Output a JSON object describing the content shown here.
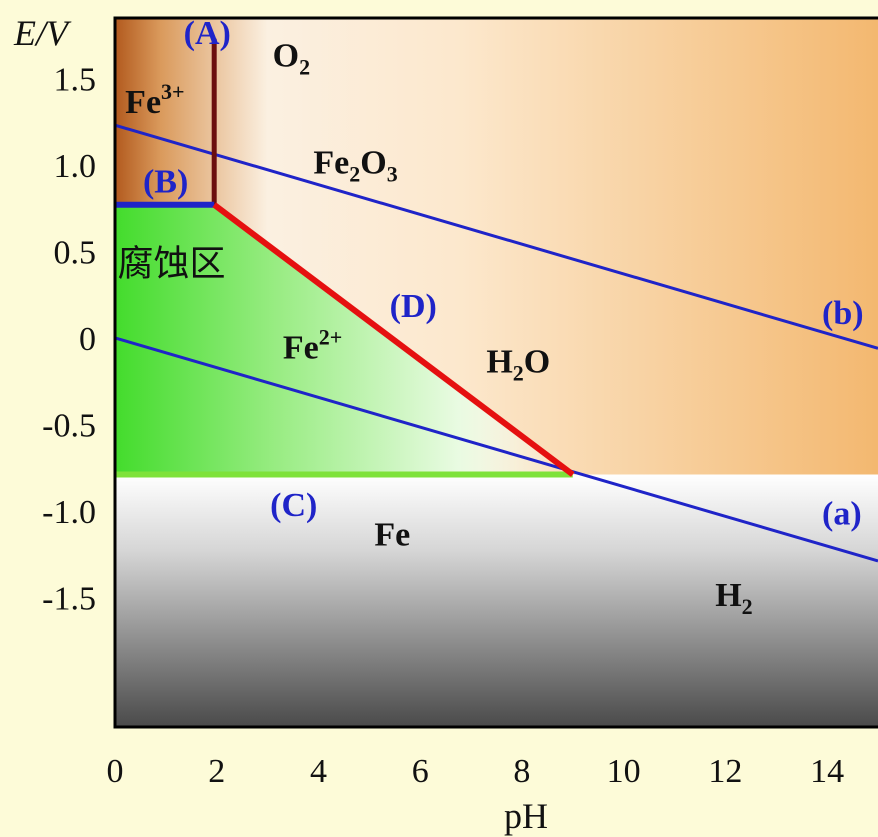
{
  "chart_data": {
    "type": "line",
    "title": "",
    "xlabel": "pH",
    "ylabel": "E/V",
    "xlim": [
      0,
      15
    ],
    "ylim": [
      -2.25,
      1.85
    ],
    "x_ticks": [
      0,
      2,
      4,
      6,
      8,
      10,
      12,
      14
    ],
    "y_ticks": [
      1.5,
      1.0,
      0.5,
      0,
      -0.5,
      -1.0,
      -1.5
    ],
    "y_tick_labels": [
      "1.5",
      "1.0",
      "0.5",
      "0",
      "-0.5",
      "-1.0",
      "-1.5"
    ],
    "regions": [
      {
        "label": "Fe3+",
        "color": "#B25A1E"
      },
      {
        "label": "Fe2O3",
        "color": "#F3B870"
      },
      {
        "label": "Fe2+",
        "color": "#43DC2C"
      },
      {
        "label": "Fe",
        "color": "#5A5A5A"
      }
    ],
    "series": [
      {
        "name": "(A)",
        "color": "#6B0F0F",
        "x": [
          1.95,
          1.95
        ],
        "y": [
          0.77,
          1.73
        ]
      },
      {
        "name": "(B)",
        "color": "#1F24C8",
        "x": [
          0,
          1.95
        ],
        "y": [
          0.77,
          0.77
        ]
      },
      {
        "name": "(C)",
        "color": "#7EE23A",
        "x": [
          0,
          9.0
        ],
        "y": [
          -0.79,
          -0.79
        ]
      },
      {
        "name": "(D)",
        "color": "#E51010",
        "x": [
          1.95,
          9.0
        ],
        "y": [
          0.77,
          -0.79
        ]
      },
      {
        "name": "(a)",
        "color": "#1F24C8",
        "x": [
          0,
          15
        ],
        "y": [
          0.0,
          -1.29
        ]
      },
      {
        "name": "(b)",
        "color": "#1F24C8",
        "x": [
          0,
          15
        ],
        "y": [
          1.23,
          -0.06
        ]
      }
    ],
    "annotations": [
      {
        "text": "Fe",
        "sup": "3+",
        "x": 0.2,
        "y": 1.3
      },
      {
        "text": "O",
        "sub": "2",
        "x": 3.1,
        "y": 1.57
      },
      {
        "text": "Fe",
        "sub": "2",
        "text2": "O",
        "sub2": "3",
        "x": 3.9,
        "y": 0.95
      },
      {
        "text": "腐蚀区",
        "x": 0.05,
        "y": 0.36
      },
      {
        "text": "Fe",
        "sup": "2+",
        "x": 3.3,
        "y": -0.12
      },
      {
        "text": "H",
        "sub": "2",
        "text2": "O",
        "x": 7.3,
        "y": -0.2
      },
      {
        "text": "Fe",
        "x": 5.1,
        "y": -1.2
      },
      {
        "text": "H",
        "sub": "2",
        "x": 11.8,
        "y": -1.55
      },
      {
        "text": "(A)",
        "x": 1.35,
        "y": 1.7
      },
      {
        "text": "(B)",
        "x": 0.55,
        "y": 0.84
      },
      {
        "text": "(C)",
        "x": 3.05,
        "y": -1.03
      },
      {
        "text": "(D)",
        "x": 5.4,
        "y": 0.12
      },
      {
        "text": "(a)",
        "x": 13.9,
        "y": -1.08
      },
      {
        "text": "(b)",
        "x": 13.9,
        "y": 0.08
      }
    ]
  }
}
